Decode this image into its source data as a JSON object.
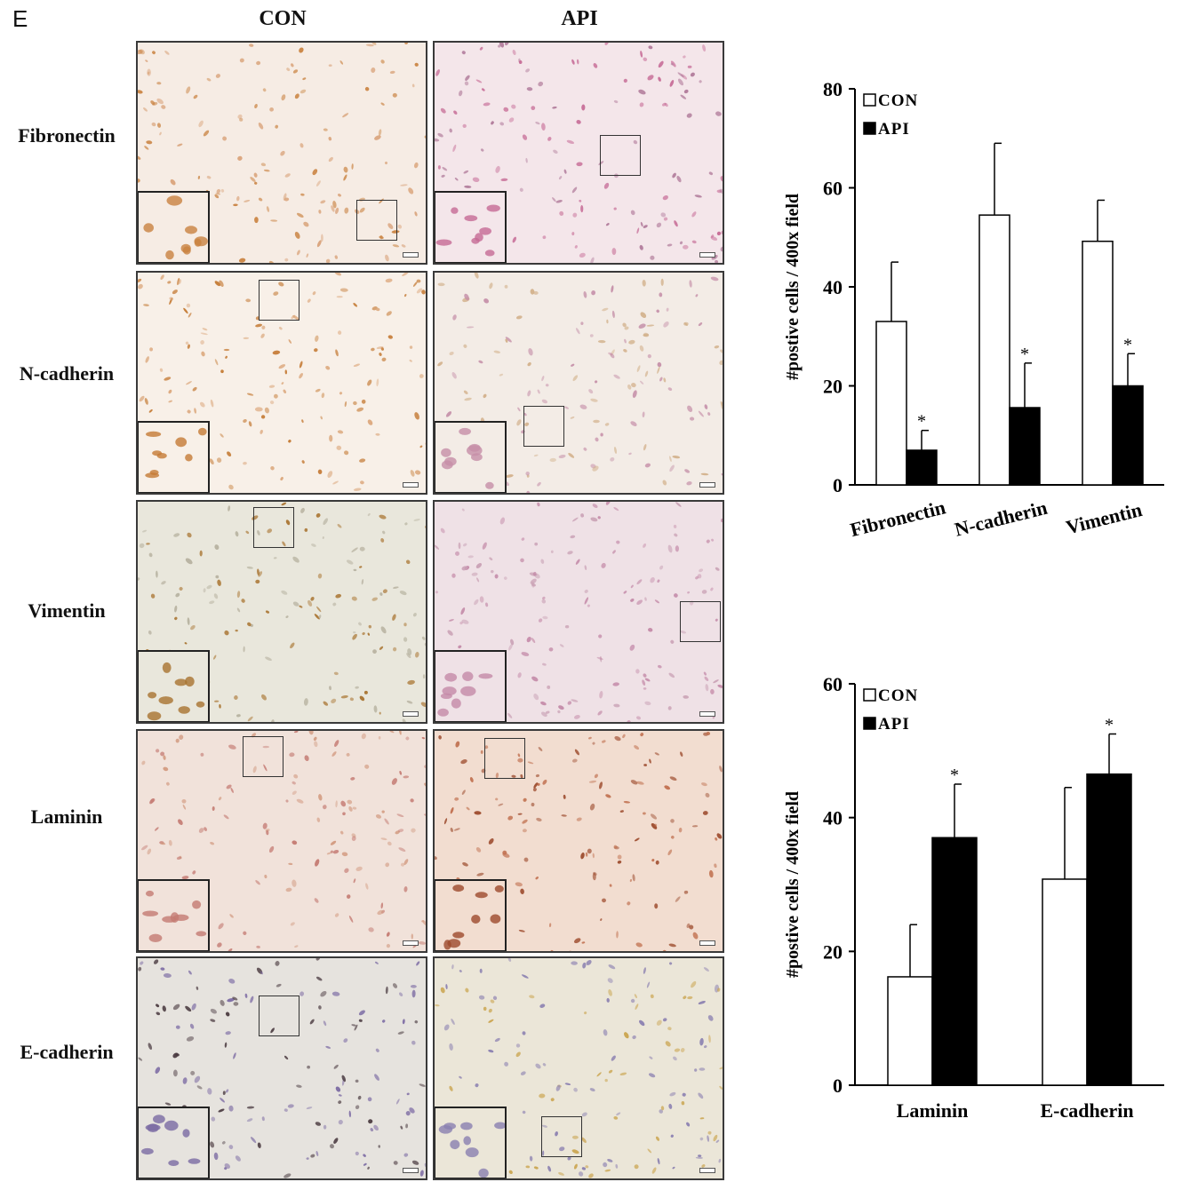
{
  "figure": {
    "panel_letter": "E",
    "column_headers": [
      "CON",
      "API"
    ],
    "row_labels": [
      "Fibronectin",
      "N-cadherin",
      "Vimentin",
      "Laminin",
      "E-cadherin"
    ],
    "colors": {
      "con": "#ffffff",
      "api": "#000000",
      "axis": "#000000"
    }
  },
  "chart_data": [
    {
      "type": "bar",
      "categories": [
        "Fibronectin",
        "N-cadherin",
        "Vimentin"
      ],
      "series": [
        {
          "name": "CON",
          "values": [
            33,
            54.5,
            49.2
          ],
          "errors": [
            12,
            14.5,
            8.3
          ],
          "color": "#ffffff"
        },
        {
          "name": "API",
          "values": [
            7,
            15.6,
            20
          ],
          "errors": [
            4,
            9,
            6.5
          ],
          "color": "#000000"
        }
      ],
      "significance": [
        "*",
        "*",
        "*"
      ],
      "ylabel": "#postive cells / 400x field",
      "xlabel": "",
      "ylim": [
        0,
        80
      ],
      "yticks": [
        0,
        20,
        40,
        60,
        80
      ],
      "legend": "top-left",
      "grid": false
    },
    {
      "type": "bar",
      "categories": [
        "Laminin",
        "E-cadherin"
      ],
      "series": [
        {
          "name": "CON",
          "values": [
            16.2,
            30.8
          ],
          "errors": [
            7.8,
            13.7
          ],
          "color": "#ffffff"
        },
        {
          "name": "API",
          "values": [
            37,
            46.5
          ],
          "errors": [
            8,
            6
          ],
          "color": "#000000"
        }
      ],
      "significance": [
        "*",
        "*"
      ],
      "ylabel": "#postive cells / 400x field",
      "xlabel": "",
      "ylim": [
        0,
        60
      ],
      "yticks": [
        0,
        20,
        40,
        60
      ],
      "legend": "top-left",
      "grid": false
    }
  ]
}
